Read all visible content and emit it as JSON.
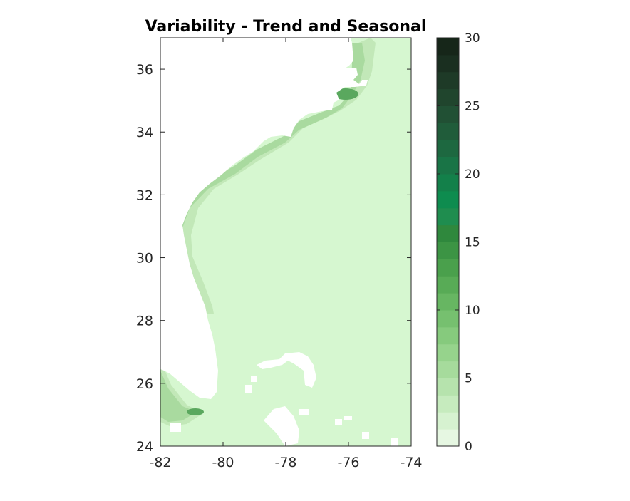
{
  "chart_data": {
    "type": "heatmap",
    "title": "Variability - Trend and Seasonal",
    "xlabel": "",
    "ylabel": "",
    "xlim": [
      -82,
      -74
    ],
    "ylim": [
      24,
      37
    ],
    "x_ticks": [
      -82,
      -80,
      -78,
      -76,
      -74
    ],
    "x_tick_labels": [
      "-82",
      "-80",
      "-78",
      "-76",
      "-74"
    ],
    "y_ticks": [
      24,
      26,
      28,
      30,
      32,
      34,
      36
    ],
    "y_tick_labels": [
      "24",
      "26",
      "28",
      "30",
      "32",
      "34",
      "36"
    ],
    "colorbar": {
      "min": 0,
      "max": 30,
      "levels": 24,
      "ticks": [
        0,
        5,
        10,
        15,
        20,
        25,
        30
      ],
      "tick_labels": [
        "0",
        "5",
        "10",
        "15",
        "20",
        "25",
        "30"
      ],
      "colors": [
        "#e6f7e2",
        "#d6f2d0",
        "#c6ebbe",
        "#b6e3ad",
        "#a6db9c",
        "#96d38c",
        "#86ca7d",
        "#76c06f",
        "#67b662",
        "#58ab56",
        "#4aa04c",
        "#3c9444",
        "#2f883d",
        "#1f8d4f",
        "#0e8c4f",
        "#13804a",
        "#197446",
        "#1d6840",
        "#205c3a",
        "#215034",
        "#20452d",
        "#1e3a27",
        "#1a2f20",
        "#162619"
      ]
    },
    "base_value_open_ocean": 1,
    "coastal_band_values": [
      1,
      3,
      6
    ],
    "hotspots": [
      {
        "lon": -76.2,
        "lat": 35.2,
        "value": 10
      },
      {
        "lon": -81.0,
        "lat": 25.05,
        "value": 9
      }
    ],
    "grid": false
  }
}
